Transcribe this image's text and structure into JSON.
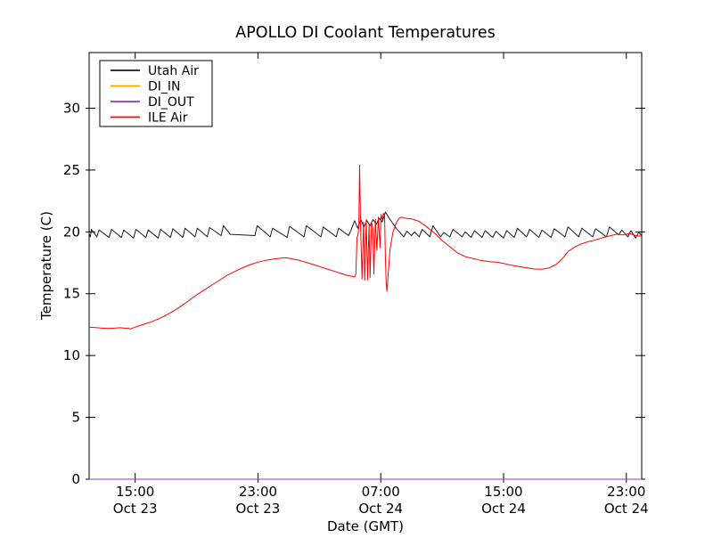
{
  "figure": {
    "background": "#ffffff"
  },
  "chart_data": {
    "type": "line",
    "title": "APOLLO DI Coolant Temperatures",
    "xlabel": "Date (GMT)",
    "ylabel": "Temperature (C)",
    "x_unit": "hours since Oct 23 12:00 GMT",
    "xlim": [
      0,
      36
    ],
    "ylim": [
      0,
      34.5
    ],
    "grid": false,
    "legend": {
      "position": "upper left"
    },
    "yticks": {
      "values": [
        0,
        5,
        10,
        15,
        20,
        25,
        30
      ],
      "labels": [
        "0",
        "5",
        "10",
        "15",
        "20",
        "25",
        "30"
      ]
    },
    "xticks": [
      {
        "value": 3,
        "time": "15:00",
        "date": "Oct 23"
      },
      {
        "value": 11,
        "time": "23:00",
        "date": "Oct 23"
      },
      {
        "value": 19,
        "time": "07:00",
        "date": "Oct 24"
      },
      {
        "value": 27,
        "time": "15:00",
        "date": "Oct 24"
      },
      {
        "value": 35,
        "time": "23:00",
        "date": "Oct 24"
      }
    ],
    "series": [
      {
        "name": "Utah Air",
        "color": "#1a1a1a",
        "points": [
          [
            0,
            19.85
          ],
          [
            0.08,
            19.6
          ],
          [
            0.15,
            20.2
          ],
          [
            0.5,
            19.6
          ],
          [
            0.65,
            20.15
          ],
          [
            1.3,
            19.55
          ],
          [
            1.45,
            20.2
          ],
          [
            2.1,
            19.55
          ],
          [
            2.25,
            20.15
          ],
          [
            2.9,
            19.5
          ],
          [
            3.05,
            20.2
          ],
          [
            3.7,
            19.55
          ],
          [
            3.85,
            20.15
          ],
          [
            4.5,
            19.5
          ],
          [
            4.65,
            20.2
          ],
          [
            5.3,
            19.55
          ],
          [
            5.45,
            20.25
          ],
          [
            6.1,
            19.55
          ],
          [
            6.25,
            20.3
          ],
          [
            6.9,
            19.6
          ],
          [
            7.05,
            20.3
          ],
          [
            7.7,
            19.6
          ],
          [
            7.85,
            20.35
          ],
          [
            8.6,
            19.7
          ],
          [
            8.75,
            20.5
          ],
          [
            9.2,
            19.8
          ],
          [
            10,
            19.75
          ],
          [
            10.8,
            19.7
          ],
          [
            10.95,
            20.5
          ],
          [
            11.8,
            19.6
          ],
          [
            11.95,
            20.3
          ],
          [
            12.9,
            19.55
          ],
          [
            13.05,
            20.45
          ],
          [
            14,
            19.6
          ],
          [
            14.15,
            20.5
          ],
          [
            15.1,
            19.6
          ],
          [
            15.25,
            20.4
          ],
          [
            16.1,
            19.6
          ],
          [
            16.25,
            20.3
          ],
          [
            16.9,
            19.7
          ],
          [
            17.05,
            20.1
          ],
          [
            17.3,
            20.9
          ],
          [
            17.5,
            20.3
          ],
          [
            17.7,
            21
          ],
          [
            17.9,
            20.4
          ],
          [
            18.1,
            20.9
          ],
          [
            18.3,
            20.5
          ],
          [
            18.5,
            21
          ],
          [
            18.7,
            20.6
          ],
          [
            18.9,
            21.1
          ],
          [
            19.1,
            20.8
          ],
          [
            19.3,
            21.6
          ],
          [
            19.55,
            21.1
          ],
          [
            20,
            20.3
          ],
          [
            20.5,
            19.6
          ],
          [
            20.7,
            20.05
          ],
          [
            21,
            19.7
          ],
          [
            21.2,
            20
          ],
          [
            21.5,
            19.6
          ],
          [
            21.7,
            20.2
          ],
          [
            22.2,
            19.6
          ],
          [
            22.4,
            20.5
          ],
          [
            22.9,
            19.6
          ],
          [
            23.1,
            19.95
          ],
          [
            23.5,
            19.6
          ],
          [
            23.7,
            20.2
          ],
          [
            24.3,
            19.6
          ],
          [
            24.5,
            20
          ],
          [
            24.9,
            19.55
          ],
          [
            25.1,
            20.1
          ],
          [
            25.6,
            19.55
          ],
          [
            25.8,
            20.1
          ],
          [
            26.3,
            19.55
          ],
          [
            26.5,
            20.05
          ],
          [
            27,
            19.5
          ],
          [
            27.2,
            20.1
          ],
          [
            27.7,
            19.55
          ],
          [
            27.9,
            20.3
          ],
          [
            28.5,
            19.6
          ],
          [
            28.7,
            20.2
          ],
          [
            29.3,
            19.55
          ],
          [
            29.5,
            20.15
          ],
          [
            30.1,
            19.55
          ],
          [
            30.3,
            20.25
          ],
          [
            31,
            19.6
          ],
          [
            31.2,
            20.4
          ],
          [
            31.9,
            19.6
          ],
          [
            32.1,
            20.3
          ],
          [
            32.8,
            19.6
          ],
          [
            33,
            20.25
          ],
          [
            33.7,
            19.6
          ],
          [
            33.9,
            20.4
          ],
          [
            34.5,
            19.75
          ],
          [
            34.7,
            20.15
          ],
          [
            35.1,
            19.6
          ],
          [
            35.3,
            20.1
          ],
          [
            35.6,
            19.5
          ],
          [
            35.8,
            19.95
          ],
          [
            36,
            19.7
          ]
        ]
      },
      {
        "name": "DI_IN",
        "color": "#ffa500",
        "points": [
          [
            0,
            0
          ],
          [
            36,
            0
          ]
        ]
      },
      {
        "name": "DI_OUT",
        "color": "#9933cc",
        "points": [
          [
            0,
            0
          ],
          [
            36,
            0
          ]
        ]
      },
      {
        "name": "ILE Air",
        "color": "#ff0000",
        "points": [
          [
            0,
            12.3
          ],
          [
            0.5,
            12.25
          ],
          [
            1,
            12.2
          ],
          [
            1.5,
            12.2
          ],
          [
            2,
            12.25
          ],
          [
            2.5,
            12.2
          ],
          [
            2.7,
            12.15
          ],
          [
            3,
            12.3
          ],
          [
            3.5,
            12.5
          ],
          [
            4,
            12.7
          ],
          [
            4.5,
            12.95
          ],
          [
            5,
            13.25
          ],
          [
            5.5,
            13.6
          ],
          [
            6,
            14
          ],
          [
            6.5,
            14.45
          ],
          [
            7,
            14.9
          ],
          [
            7.5,
            15.3
          ],
          [
            8,
            15.7
          ],
          [
            8.5,
            16.1
          ],
          [
            9,
            16.5
          ],
          [
            9.5,
            16.8
          ],
          [
            10,
            17.1
          ],
          [
            10.5,
            17.35
          ],
          [
            11,
            17.55
          ],
          [
            11.5,
            17.7
          ],
          [
            12,
            17.8
          ],
          [
            12.5,
            17.88
          ],
          [
            12.9,
            17.9
          ],
          [
            13.3,
            17.8
          ],
          [
            13.7,
            17.7
          ],
          [
            14.1,
            17.55
          ],
          [
            14.5,
            17.4
          ],
          [
            15,
            17.2
          ],
          [
            15.5,
            17
          ],
          [
            16,
            16.8
          ],
          [
            16.5,
            16.6
          ],
          [
            16.9,
            16.45
          ],
          [
            17.15,
            16.4
          ],
          [
            17.3,
            16.35
          ],
          [
            17.38,
            16.6
          ],
          [
            17.45,
            19.5
          ],
          [
            17.52,
            19.8
          ],
          [
            17.57,
            20.4
          ],
          [
            17.62,
            25.4
          ],
          [
            17.68,
            20.9
          ],
          [
            17.72,
            18.9
          ],
          [
            17.78,
            16.2
          ],
          [
            17.88,
            20.8
          ],
          [
            17.96,
            16.1
          ],
          [
            18.06,
            21
          ],
          [
            18.14,
            16.1
          ],
          [
            18.24,
            20.6
          ],
          [
            18.3,
            16.3
          ],
          [
            18.4,
            20.8
          ],
          [
            18.48,
            20.3
          ],
          [
            18.55,
            16.6
          ],
          [
            18.65,
            21
          ],
          [
            18.75,
            18.5
          ],
          [
            18.85,
            21.2
          ],
          [
            18.95,
            18.7
          ],
          [
            19.02,
            21.4
          ],
          [
            19.1,
            21
          ],
          [
            19.17,
            21.5
          ],
          [
            19.25,
            21.3
          ],
          [
            19.3,
            18
          ],
          [
            19.35,
            15.9
          ],
          [
            19.4,
            15.2
          ],
          [
            19.5,
            16.8
          ],
          [
            19.6,
            18.6
          ],
          [
            19.8,
            20
          ],
          [
            20,
            20.7
          ],
          [
            20.2,
            21.1
          ],
          [
            20.35,
            21.2
          ],
          [
            20.6,
            21.1
          ],
          [
            21,
            21.05
          ],
          [
            21.5,
            20.85
          ],
          [
            22,
            20.4
          ],
          [
            22.3,
            20.1
          ],
          [
            22.6,
            19.8
          ],
          [
            23,
            19.3
          ],
          [
            23.5,
            18.8
          ],
          [
            24,
            18.3
          ],
          [
            24.5,
            18
          ],
          [
            25,
            17.85
          ],
          [
            25.5,
            17.7
          ],
          [
            26,
            17.6
          ],
          [
            26.5,
            17.55
          ],
          [
            27,
            17.45
          ],
          [
            27.5,
            17.3
          ],
          [
            28,
            17.2
          ],
          [
            28.5,
            17.1
          ],
          [
            29,
            17
          ],
          [
            29.5,
            16.98
          ],
          [
            30,
            17.1
          ],
          [
            30.4,
            17.35
          ],
          [
            30.8,
            17.8
          ],
          [
            31.2,
            18.4
          ],
          [
            31.6,
            18.75
          ],
          [
            32,
            19
          ],
          [
            32.5,
            19.2
          ],
          [
            33,
            19.35
          ],
          [
            33.5,
            19.55
          ],
          [
            34,
            19.7
          ],
          [
            34.4,
            19.82
          ],
          [
            34.8,
            19.75
          ],
          [
            35.2,
            19.87
          ],
          [
            35.6,
            19.7
          ],
          [
            36,
            19.65
          ]
        ]
      }
    ]
  }
}
